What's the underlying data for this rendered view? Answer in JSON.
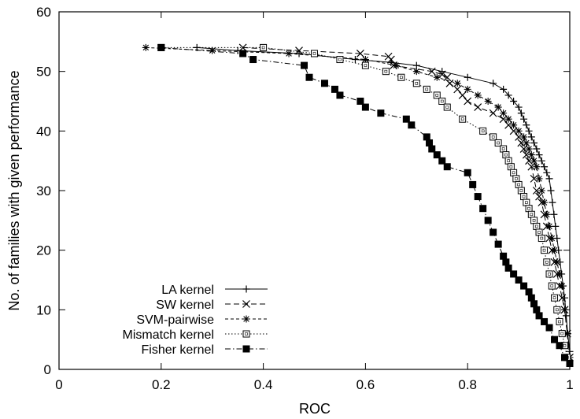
{
  "chart_data": {
    "type": "line",
    "title": "",
    "xlabel": "ROC",
    "ylabel": "No. of families with given performance",
    "xlim": [
      0,
      1
    ],
    "ylim": [
      0,
      60
    ],
    "xticks": [
      "0",
      "0.2",
      "0.4",
      "0.6",
      "0.8",
      "1"
    ],
    "yticks": [
      "0",
      "10",
      "20",
      "30",
      "40",
      "50",
      "60"
    ],
    "grid": false,
    "legend_position": "bottom-left",
    "series": [
      {
        "name": "LA kernel",
        "line_style": "solid",
        "marker": "plus",
        "color": "#000000",
        "x": [
          0.27,
          0.35,
          0.47,
          0.58,
          0.65,
          0.7,
          0.75,
          0.8,
          0.85,
          0.87,
          0.88,
          0.89,
          0.9,
          0.905,
          0.91,
          0.915,
          0.92,
          0.925,
          0.93,
          0.935,
          0.94,
          0.945,
          0.95,
          0.955,
          0.96,
          0.963,
          0.966,
          0.969,
          0.972,
          0.975,
          0.978,
          0.981,
          0.984,
          0.987,
          0.99,
          0.993,
          0.996,
          1.0
        ],
        "y": [
          54,
          53.5,
          53,
          52,
          51.5,
          51,
          50,
          49,
          48,
          47,
          46,
          45,
          44,
          43,
          42,
          41,
          40,
          39,
          38,
          37,
          36,
          35,
          34,
          33,
          32,
          30,
          28,
          26,
          24,
          22,
          20,
          18,
          16,
          14,
          12,
          9,
          6,
          3
        ]
      },
      {
        "name": "SW kernel",
        "line_style": "dashed",
        "marker": "cross",
        "color": "#000000",
        "x": [
          0.36,
          0.47,
          0.59,
          0.645,
          0.65,
          0.655,
          0.73,
          0.75,
          0.76,
          0.765,
          0.78,
          0.79,
          0.8,
          0.82,
          0.85,
          0.87,
          0.88,
          0.89,
          0.9,
          0.905,
          0.91,
          0.915,
          0.92,
          0.925,
          0.93,
          0.935,
          0.94,
          0.945,
          0.95,
          0.955,
          0.96,
          0.965,
          0.97,
          0.975,
          0.98,
          0.985,
          0.99,
          0.995,
          1.0
        ],
        "y": [
          54,
          53.5,
          53,
          52.5,
          52,
          51,
          50,
          49.5,
          49,
          48,
          47,
          46,
          45,
          44,
          43,
          42,
          41,
          40,
          39,
          38,
          37,
          36,
          35,
          34,
          32,
          30,
          29,
          28,
          26,
          24,
          22,
          20,
          18,
          16,
          14,
          12,
          10,
          6,
          2
        ]
      },
      {
        "name": "SVM-pairwise",
        "line_style": "short-dashed",
        "marker": "asterisk",
        "color": "#000000",
        "x": [
          0.17,
          0.3,
          0.45,
          0.6,
          0.66,
          0.7,
          0.74,
          0.78,
          0.8,
          0.82,
          0.84,
          0.86,
          0.87,
          0.88,
          0.89,
          0.9,
          0.91,
          0.915,
          0.92,
          0.925,
          0.93,
          0.935,
          0.94,
          0.945,
          0.95,
          0.955,
          0.96,
          0.965,
          0.97,
          0.975,
          0.98,
          0.985,
          0.99,
          0.995,
          1.0
        ],
        "y": [
          54,
          53.5,
          53,
          52,
          51,
          50,
          49,
          48,
          47,
          46,
          45,
          44,
          43,
          42,
          41,
          40,
          39,
          38,
          37,
          36,
          35,
          34,
          32,
          30,
          28,
          26,
          24,
          22,
          20,
          18,
          16,
          14,
          10,
          6,
          2
        ]
      },
      {
        "name": "Mismatch kernel",
        "line_style": "dotted",
        "marker": "open-square",
        "color": "#000000",
        "x": [
          0.2,
          0.4,
          0.5,
          0.55,
          0.6,
          0.64,
          0.67,
          0.7,
          0.72,
          0.74,
          0.75,
          0.76,
          0.79,
          0.83,
          0.85,
          0.86,
          0.87,
          0.875,
          0.88,
          0.885,
          0.89,
          0.895,
          0.9,
          0.905,
          0.91,
          0.915,
          0.92,
          0.925,
          0.93,
          0.935,
          0.94,
          0.945,
          0.95,
          0.955,
          0.96,
          0.965,
          0.97,
          0.975,
          0.98,
          0.985,
          0.99,
          0.995,
          1.0
        ],
        "y": [
          54,
          54,
          53,
          52,
          51,
          50,
          49,
          48,
          47,
          46,
          45,
          44,
          42,
          40,
          39,
          38,
          37,
          36,
          35,
          34,
          33,
          32,
          31,
          30,
          29,
          28,
          27,
          26,
          25,
          24,
          23,
          22,
          20,
          18,
          16,
          14,
          12,
          10,
          8,
          6,
          4,
          2,
          1
        ]
      },
      {
        "name": "Fisher kernel",
        "line_style": "dash-dot",
        "marker": "filled-square",
        "color": "#000000",
        "x": [
          0.2,
          0.36,
          0.38,
          0.48,
          0.49,
          0.52,
          0.54,
          0.55,
          0.59,
          0.6,
          0.63,
          0.68,
          0.69,
          0.72,
          0.725,
          0.73,
          0.74,
          0.75,
          0.76,
          0.8,
          0.81,
          0.82,
          0.83,
          0.84,
          0.85,
          0.86,
          0.87,
          0.875,
          0.88,
          0.89,
          0.9,
          0.91,
          0.92,
          0.925,
          0.93,
          0.935,
          0.94,
          0.95,
          0.96,
          0.97,
          0.98,
          0.99,
          1.0
        ],
        "y": [
          54,
          53,
          52,
          51,
          49,
          48,
          47,
          46,
          45,
          44,
          43,
          42,
          41,
          39,
          38,
          37,
          36,
          35,
          34,
          33,
          31,
          29,
          27,
          25,
          23,
          21,
          19,
          18,
          17,
          16,
          15,
          14,
          13,
          12,
          11,
          10,
          9,
          8,
          7,
          5,
          4,
          2,
          1
        ]
      }
    ]
  }
}
